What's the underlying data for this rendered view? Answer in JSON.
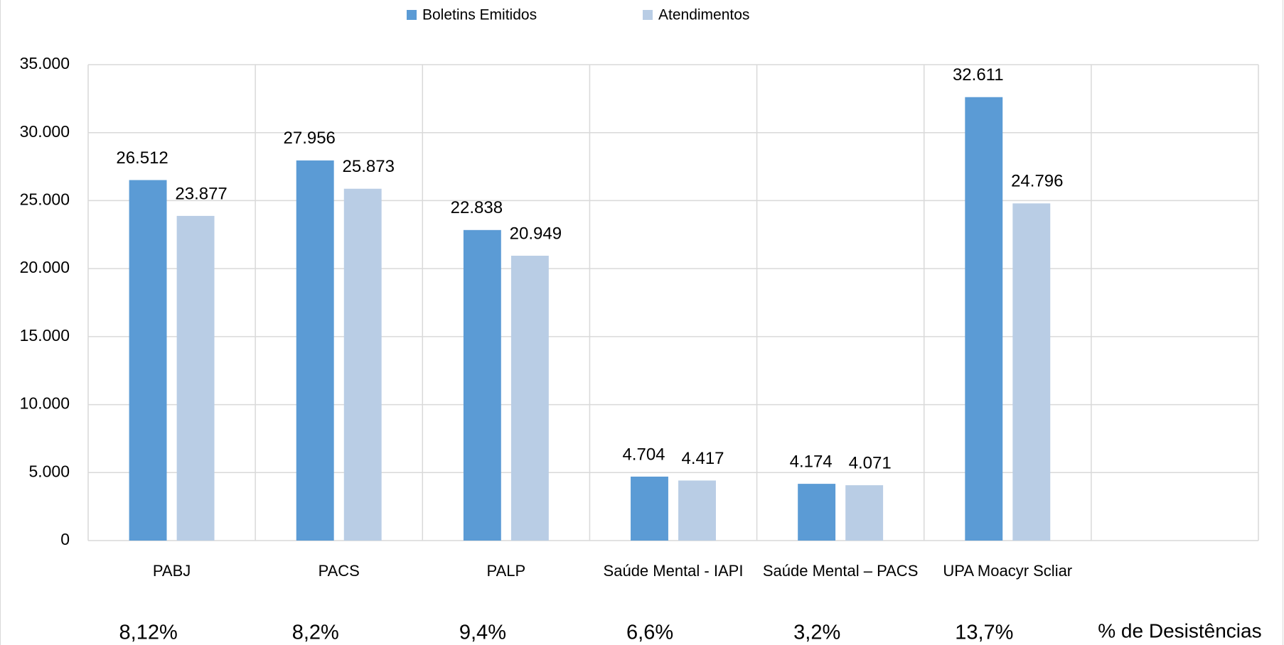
{
  "chart_data": {
    "type": "bar",
    "categories": [
      "PABJ",
      "PACS",
      "PALP",
      "Saúde Mental - IAPI",
      "Saúde Mental – PACS",
      "UPA Moacyr Scliar"
    ],
    "series": [
      {
        "name": "Boletins Emitidos",
        "color": "#5b9bd5",
        "values": [
          26512,
          27956,
          22838,
          4704,
          4174,
          32611
        ],
        "value_labels": [
          "26.512",
          "27.956",
          "22.838",
          "4.704",
          "4.174",
          "32.611"
        ]
      },
      {
        "name": "Atendimentos",
        "color": "#b9cde5",
        "values": [
          23877,
          25873,
          20949,
          4417,
          4071,
          24796
        ],
        "value_labels": [
          "23.877",
          "25.873",
          "20.949",
          "4.417",
          "4.071",
          "24.796"
        ]
      }
    ],
    "rates": {
      "name": "% de Desistências",
      "values": [
        8.12,
        8.2,
        9.4,
        6.6,
        3.2,
        13.7
      ],
      "value_labels": [
        "8,12%",
        "8,2%",
        "9,4%",
        "6,6%",
        "3,2%",
        "13,7%"
      ]
    },
    "ylim": [
      0,
      35000
    ],
    "yticks": [
      0,
      {
        "value": 5000,
        "label": "5.000"
      },
      {
        "value": 10000,
        "label": "10.000"
      },
      {
        "value": 15000,
        "label": "15.000"
      },
      {
        "value": 20000,
        "label": "20.000"
      },
      {
        "value": 25000,
        "label": "25.000"
      },
      {
        "value": 30000,
        "label": "30.000"
      },
      {
        "value": 35000,
        "label": "35.000"
      }
    ],
    "grid": true,
    "legend": "top"
  }
}
